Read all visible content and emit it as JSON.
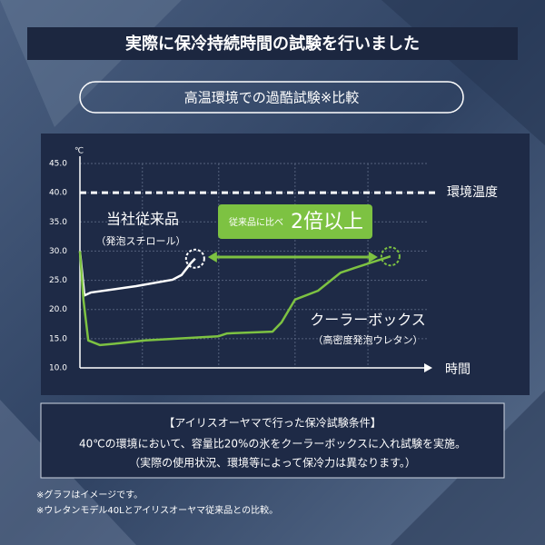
{
  "header": {
    "title": "実際に保冷持続時間の試験を行いました",
    "subtitle": "高温環境での過酷試験※比較"
  },
  "chart_data": {
    "type": "line",
    "unit": "℃",
    "xlabel": "時間",
    "xlim": [
      0,
      100
    ],
    "xticks": [
      18,
      40,
      62,
      83
    ],
    "ylim": [
      10,
      45
    ],
    "yticks": [
      {
        "value": 10,
        "label": "10.0"
      },
      {
        "value": 15,
        "label": "15.0"
      },
      {
        "value": 20,
        "label": "20.0"
      },
      {
        "value": 25,
        "label": "25.0"
      },
      {
        "value": 30,
        "label": "30.0"
      },
      {
        "value": 35,
        "label": "35.0"
      },
      {
        "value": 40,
        "label": "40.0"
      },
      {
        "value": 45,
        "label": "45.0"
      }
    ],
    "grid": true,
    "reference_line": {
      "value": 40,
      "label": "環境温度"
    },
    "series": [
      {
        "name": "当社従来品",
        "material": "（発泡スチロール）",
        "color": "#ffffff",
        "x": [
          0,
          1.3,
          3.1,
          16.2,
          26.7,
          29.3,
          31.9,
          33.2
        ],
        "values": [
          30,
          22.4,
          22.9,
          24.0,
          25.1,
          25.9,
          27.9,
          28.7
        ]
      },
      {
        "name": "クーラーボックス",
        "material": "（高密度発泡ウレタン）",
        "color": "#7dc242",
        "x": [
          0,
          1.0,
          2.4,
          5.8,
          11.0,
          18.8,
          39.8,
          42.4,
          55.5,
          58.1,
          62.0,
          68.6,
          75.1,
          79.1,
          89.5
        ],
        "values": [
          30,
          21.7,
          14.7,
          13.9,
          14.2,
          14.7,
          15.4,
          15.9,
          16.2,
          17.8,
          21.7,
          23.2,
          26.3,
          27.1,
          29.1
        ]
      }
    ],
    "annotation": {
      "prefix": "従来品に比べ",
      "main": "2倍以上"
    }
  },
  "conditions": {
    "title": "【アイリスオーヤマで行った保冷試験条件】",
    "lines": [
      "40℃の環境において、容量比20%の氷をクーラーボックスに入れ試験を実施。",
      "（実際の使用状況、環境等によって保冷力は異なります。）"
    ]
  },
  "footnotes": [
    "※グラフはイメージです。",
    "※ウレタンモデル40Lとアイリスオーヤマ従来品との比較。"
  ]
}
